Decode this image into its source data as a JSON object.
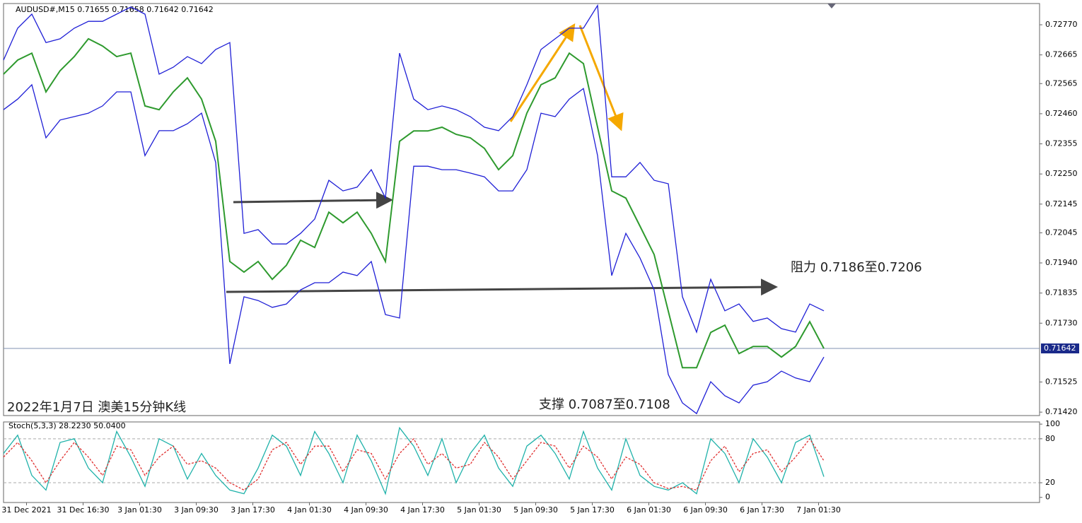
{
  "chart_data": [
    {
      "type": "line",
      "title": "AUDUSD#,M15  0.71655 0.71658 0.71642 0.71642",
      "annotations": [
        "阻力 0.7186至0.7206",
        "支撑 0.7087至0.7108",
        "2022年1月7日 澳美15分钟K线"
      ],
      "xlim": [
        0,
        586
      ],
      "ylim": [
        0.71408,
        0.72844
      ],
      "yticks": [
        {
          "value": 0.7142,
          "label": "0.71420"
        },
        {
          "value": 0.71525,
          "label": "0.71525"
        },
        {
          "value": 0.7173,
          "label": "0.71730"
        },
        {
          "value": 0.71835,
          "label": "0.71835"
        },
        {
          "value": 0.7194,
          "label": "0.71940"
        },
        {
          "value": 0.72045,
          "label": "0.72045"
        },
        {
          "value": 0.72145,
          "label": "0.72145"
        },
        {
          "value": 0.7225,
          "label": "0.72250"
        },
        {
          "value": 0.72355,
          "label": "0.72355"
        },
        {
          "value": 0.7246,
          "label": "0.72460"
        },
        {
          "value": 0.72565,
          "label": "0.72565"
        },
        {
          "value": 0.72665,
          "label": "0.72665"
        },
        {
          "value": 0.7277,
          "label": "0.72770"
        }
      ],
      "current_price": 0.71642,
      "x": [
        0,
        8,
        16,
        24,
        32,
        40,
        48,
        56,
        64,
        72,
        80,
        88,
        96,
        104,
        112,
        120,
        128,
        136,
        144,
        152,
        160,
        168,
        176,
        184,
        192,
        200,
        208,
        216,
        224,
        232,
        240,
        248,
        256,
        264,
        272,
        280,
        288,
        296,
        304,
        312,
        320,
        328,
        336,
        344,
        352,
        360,
        368,
        376,
        384,
        392,
        400,
        408,
        416,
        424,
        432,
        440,
        448,
        456,
        464
      ],
      "series": [
        {
          "color": "#2e9a2e",
          "values": [
            0.72598,
            0.72647,
            0.72671,
            0.72536,
            0.7261,
            0.72659,
            0.72721,
            0.72696,
            0.72659,
            0.72671,
            0.72487,
            0.72474,
            0.72536,
            0.72585,
            0.72511,
            0.72364,
            0.71945,
            0.71908,
            0.71945,
            0.71883,
            0.71932,
            0.72019,
            0.71994,
            0.72117,
            0.7208,
            0.72117,
            0.72043,
            0.71945,
            0.72364,
            0.724,
            0.724,
            0.72413,
            0.72388,
            0.72376,
            0.72339,
            0.72265,
            0.72314,
            0.72462,
            0.72561,
            0.72585,
            0.72671,
            0.72635,
            0.72413,
            0.72191,
            0.72166,
            0.72068,
            0.71969,
            0.71772,
            0.71575,
            0.71575,
            0.71698,
            0.71723,
            0.71624,
            0.71649,
            0.71649,
            0.71612,
            0.71649,
            0.71735,
            0.71642
          ]
        },
        {
          "color": "#1f1fd6",
          "values": [
            0.72647,
            0.72758,
            0.72807,
            0.72708,
            0.72721,
            0.72758,
            0.72782,
            0.72782,
            0.72807,
            0.72832,
            0.72807,
            0.72598,
            0.72622,
            0.72659,
            0.72635,
            0.72684,
            0.72708,
            0.72043,
            0.72056,
            0.72006,
            0.72006,
            0.72043,
            0.72093,
            0.72228,
            0.72191,
            0.72204,
            0.72265,
            0.72167,
            0.72671,
            0.72511,
            0.72474,
            0.72487,
            0.72474,
            0.7245,
            0.72413,
            0.72401,
            0.7245,
            0.72561,
            0.72684,
            0.72721,
            0.72758,
            0.72758,
            0.72837,
            0.7224,
            0.7224,
            0.7229,
            0.72228,
            0.72216,
            0.71822,
            0.71699,
            0.71883,
            0.71773,
            0.71797,
            0.71736,
            0.71748,
            0.71711,
            0.71699,
            0.71797,
            0.71773
          ]
        },
        {
          "color": "#1f1fd6",
          "values": [
            0.72474,
            0.72511,
            0.72561,
            0.72376,
            0.72438,
            0.7245,
            0.72462,
            0.72487,
            0.72536,
            0.72536,
            0.72314,
            0.72401,
            0.72401,
            0.72425,
            0.72462,
            0.7229,
            0.71588,
            0.71822,
            0.71809,
            0.71785,
            0.71797,
            0.71846,
            0.71871,
            0.71871,
            0.71908,
            0.71896,
            0.71945,
            0.7176,
            0.71748,
            0.72277,
            0.72277,
            0.72265,
            0.72265,
            0.72253,
            0.7224,
            0.72191,
            0.72191,
            0.72265,
            0.72462,
            0.7245,
            0.72511,
            0.72548,
            0.72314,
            0.71896,
            0.72043,
            0.71957,
            0.71846,
            0.71551,
            0.71452,
            0.71415,
            0.71526,
            0.71477,
            0.71452,
            0.71514,
            0.71526,
            0.71563,
            0.71539,
            0.71526,
            0.71612
          ]
        }
      ]
    },
    {
      "type": "line",
      "title": "Stoch(5,3,3) 28.2230 50.0400",
      "xlim": [
        0,
        586
      ],
      "ylim": [
        -7,
        103
      ],
      "yticks": [
        0,
        20,
        80,
        100
      ],
      "xticks": [
        {
          "value": 13,
          "label": "31 Dec 2021"
        },
        {
          "value": 45,
          "label": "31 Dec 16:30"
        },
        {
          "value": 77,
          "label": "3 Jan 01:30"
        },
        {
          "value": 109,
          "label": "3 Jan 09:30"
        },
        {
          "value": 141,
          "label": "3 Jan 17:30"
        },
        {
          "value": 173,
          "label": "4 Jan 01:30"
        },
        {
          "value": 205,
          "label": "4 Jan 09:30"
        },
        {
          "value": 237,
          "label": "4 Jan 17:30"
        },
        {
          "value": 269,
          "label": "5 Jan 01:30"
        },
        {
          "value": 301,
          "label": "5 Jan 09:30"
        },
        {
          "value": 333,
          "label": "5 Jan 17:30"
        },
        {
          "value": 365,
          "label": "6 Jan 01:30"
        },
        {
          "value": 397,
          "label": "6 Jan 09:30"
        },
        {
          "value": 429,
          "label": "6 Jan 17:30"
        },
        {
          "value": 461,
          "label": "7 Jan 01:30"
        }
      ],
      "x": [
        0,
        8,
        16,
        24,
        32,
        40,
        48,
        56,
        64,
        72,
        80,
        88,
        96,
        104,
        112,
        120,
        128,
        136,
        144,
        152,
        160,
        168,
        176,
        184,
        192,
        200,
        208,
        216,
        224,
        232,
        240,
        248,
        256,
        264,
        272,
        280,
        288,
        296,
        304,
        312,
        320,
        328,
        336,
        344,
        352,
        360,
        368,
        376,
        384,
        392,
        400,
        408,
        416,
        424,
        432,
        440,
        448,
        456,
        464
      ],
      "series": [
        {
          "color": "#20b2aa",
          "values": [
            60,
            85,
            30,
            10,
            75,
            80,
            40,
            20,
            90,
            55,
            15,
            80,
            70,
            25,
            60,
            30,
            10,
            5,
            40,
            85,
            70,
            30,
            90,
            60,
            20,
            85,
            50,
            5,
            95,
            70,
            30,
            80,
            20,
            60,
            85,
            40,
            15,
            70,
            85,
            60,
            25,
            90,
            40,
            10,
            80,
            30,
            15,
            10,
            20,
            5,
            80,
            60,
            20,
            80,
            55,
            20,
            75,
            85,
            28.223
          ]
        },
        {
          "color": "#e03030",
          "values": [
            55,
            75,
            50,
            20,
            50,
            75,
            55,
            30,
            70,
            65,
            30,
            55,
            70,
            45,
            50,
            40,
            20,
            10,
            25,
            65,
            75,
            45,
            70,
            70,
            35,
            65,
            60,
            25,
            60,
            80,
            45,
            60,
            40,
            45,
            75,
            55,
            25,
            50,
            75,
            70,
            40,
            70,
            55,
            25,
            55,
            45,
            20,
            12,
            15,
            10,
            50,
            70,
            35,
            60,
            65,
            35,
            55,
            80,
            50.04
          ]
        }
      ]
    }
  ]
}
